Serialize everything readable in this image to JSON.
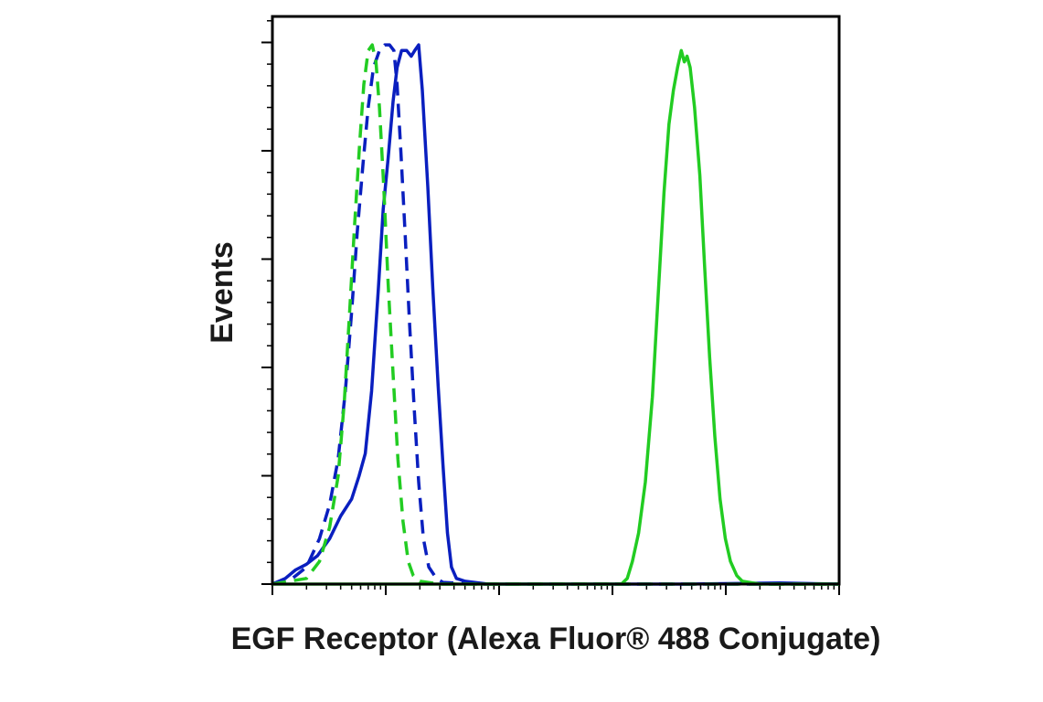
{
  "chart_data": {
    "type": "line",
    "xlabel": "EGF Receptor (Alexa Fluor® 488 Conjugate)",
    "ylabel": "Events",
    "x_scale": "log",
    "xlim": [
      1,
      100000
    ],
    "ylim": [
      0,
      100
    ],
    "x_ticks": [
      "",
      "",
      "",
      "",
      ""
    ],
    "grid": false,
    "legend": "none",
    "series": [
      {
        "color": "#0a1fbf",
        "dash": "solid",
        "points": [
          [
            1.0,
            0
          ],
          [
            1.3,
            1
          ],
          [
            1.6,
            2.5
          ],
          [
            2.0,
            3.5
          ],
          [
            2.5,
            5
          ],
          [
            3.2,
            8
          ],
          [
            4.0,
            12
          ],
          [
            5.0,
            15
          ],
          [
            5.8,
            19
          ],
          [
            6.6,
            23
          ],
          [
            7.5,
            34
          ],
          [
            8.6,
            52
          ],
          [
            9.5,
            66
          ],
          [
            10.5,
            75
          ],
          [
            11.6,
            85
          ],
          [
            12.6,
            91
          ],
          [
            13.8,
            94
          ],
          [
            15.3,
            94
          ],
          [
            16.8,
            93
          ],
          [
            18.0,
            94
          ],
          [
            19.5,
            95
          ],
          [
            21.0,
            87
          ],
          [
            23.5,
            70
          ],
          [
            26.0,
            52
          ],
          [
            29.0,
            35
          ],
          [
            32.0,
            21
          ],
          [
            35.0,
            9
          ],
          [
            38.0,
            3
          ],
          [
            42.0,
            1
          ],
          [
            50.0,
            0.5
          ],
          [
            80.0,
            0
          ],
          [
            500.0,
            0
          ],
          [
            5000.0,
            0
          ],
          [
            30000.0,
            0.2
          ],
          [
            100000.0,
            0
          ]
        ]
      },
      {
        "color": "#0a1fbf",
        "dash": "dashed",
        "points": [
          [
            1.0,
            0
          ],
          [
            1.5,
            1
          ],
          [
            2.0,
            3
          ],
          [
            2.6,
            8
          ],
          [
            3.2,
            14
          ],
          [
            3.8,
            22
          ],
          [
            4.4,
            34
          ],
          [
            5.0,
            48
          ],
          [
            5.6,
            62
          ],
          [
            6.3,
            74
          ],
          [
            7.0,
            84
          ],
          [
            7.8,
            91
          ],
          [
            8.8,
            94
          ],
          [
            9.8,
            95
          ],
          [
            10.8,
            95
          ],
          [
            11.8,
            94
          ],
          [
            12.6,
            88
          ],
          [
            13.6,
            76
          ],
          [
            14.8,
            62
          ],
          [
            16.2,
            46
          ],
          [
            17.8,
            31
          ],
          [
            19.5,
            18
          ],
          [
            21.5,
            8
          ],
          [
            24.0,
            3
          ],
          [
            28.0,
            1
          ],
          [
            32.0,
            0.3
          ],
          [
            60.0,
            0
          ],
          [
            500.0,
            0
          ],
          [
            5000.0,
            0
          ],
          [
            100000.0,
            0
          ]
        ]
      },
      {
        "color": "#22cc22",
        "dash": "dashed",
        "points": [
          [
            1.0,
            0
          ],
          [
            2.0,
            1
          ],
          [
            2.6,
            4
          ],
          [
            3.2,
            10
          ],
          [
            3.8,
            19
          ],
          [
            4.3,
            32
          ],
          [
            4.8,
            48
          ],
          [
            5.3,
            63
          ],
          [
            5.9,
            78
          ],
          [
            6.4,
            88
          ],
          [
            7.0,
            94
          ],
          [
            7.6,
            95
          ],
          [
            8.2,
            92
          ],
          [
            8.8,
            84
          ],
          [
            9.6,
            70
          ],
          [
            10.5,
            53
          ],
          [
            11.6,
            37
          ],
          [
            12.8,
            22
          ],
          [
            14.2,
            11
          ],
          [
            15.8,
            4
          ],
          [
            17.5,
            1.5
          ],
          [
            20.0,
            0.5
          ],
          [
            30.0,
            0
          ],
          [
            500.0,
            0
          ],
          [
            100000.0,
            0
          ]
        ]
      },
      {
        "color": "#22cc22",
        "dash": "solid",
        "points": [
          [
            1.0,
            0
          ],
          [
            100.0,
            0
          ],
          [
            600.0,
            0
          ],
          [
            1200.0,
            0
          ],
          [
            1350.0,
            1
          ],
          [
            1500.0,
            4
          ],
          [
            1700.0,
            9
          ],
          [
            1950.0,
            18
          ],
          [
            2250.0,
            33
          ],
          [
            2550.0,
            52
          ],
          [
            2850.0,
            69
          ],
          [
            3150.0,
            81
          ],
          [
            3450.0,
            87
          ],
          [
            3750.0,
            91
          ],
          [
            4050.0,
            94
          ],
          [
            4300.0,
            92
          ],
          [
            4550.0,
            93
          ],
          [
            4850.0,
            91
          ],
          [
            5300.0,
            84
          ],
          [
            5900.0,
            72
          ],
          [
            6500.0,
            56
          ],
          [
            7200.0,
            40
          ],
          [
            8000.0,
            26
          ],
          [
            8900.0,
            15
          ],
          [
            9900.0,
            8
          ],
          [
            11000.0,
            4
          ],
          [
            12500.0,
            1.5
          ],
          [
            14000.0,
            0.5
          ],
          [
            20000.0,
            0
          ],
          [
            100000.0,
            0
          ]
        ]
      }
    ]
  }
}
